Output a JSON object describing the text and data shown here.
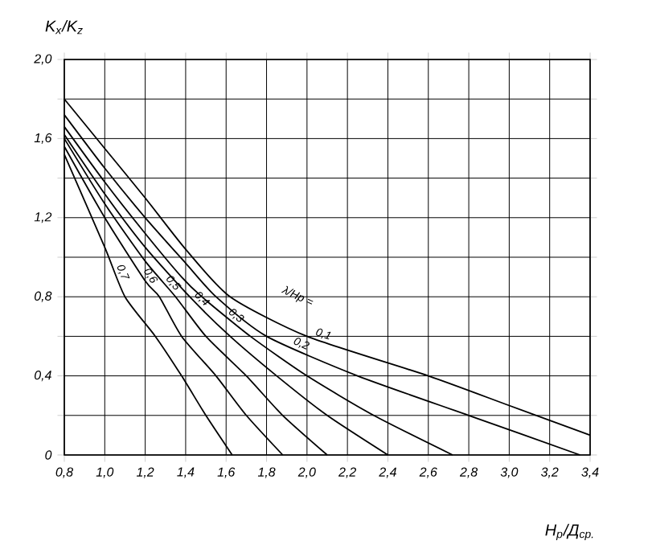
{
  "chart_data": {
    "type": "line",
    "xlabel": "Н$_{р}$/Д$_{ср.}$",
    "ylabel": "K$_{x}$/K$_{z}$",
    "xlim": [
      0.8,
      3.4
    ],
    "ylim": [
      0,
      2.0
    ],
    "xticks": [
      {
        "value": 0.8,
        "label": "0,8"
      },
      {
        "value": 1.0,
        "label": "1,0"
      },
      {
        "value": 1.2,
        "label": "1,2"
      },
      {
        "value": 1.4,
        "label": "1,4"
      },
      {
        "value": 1.6,
        "label": "1,6"
      },
      {
        "value": 1.8,
        "label": "1,8"
      },
      {
        "value": 2.0,
        "label": "2,0"
      },
      {
        "value": 2.2,
        "label": "2,2"
      },
      {
        "value": 2.4,
        "label": "2,4"
      },
      {
        "value": 2.6,
        "label": "2,6"
      },
      {
        "value": 2.8,
        "label": "2,8"
      },
      {
        "value": 3.0,
        "label": "3,0"
      },
      {
        "value": 3.2,
        "label": "3,2"
      },
      {
        "value": 3.4,
        "label": "3,4"
      }
    ],
    "yticks": [
      0,
      {
        "value": 0.2,
        "label": null
      },
      {
        "value": 0.4,
        "label": "0,4"
      },
      {
        "value": 0.6,
        "label": null
      },
      {
        "value": 0.8,
        "label": "0,8"
      },
      {
        "value": 1.0,
        "label": null
      },
      {
        "value": 1.2,
        "label": "1,2"
      },
      {
        "value": 1.4,
        "label": null
      },
      {
        "value": 1.6,
        "label": "1,6"
      },
      {
        "value": 1.8,
        "label": null
      },
      {
        "value": 2.0,
        "label": "2,0"
      }
    ],
    "grid": true,
    "legend": false,
    "marker": "none",
    "line_style": "solid",
    "annotations": [
      "λ/Hp ="
    ],
    "series": [
      {
        "name": "0,1",
        "color": "#000000",
        "x": [
          0.8,
          1.0,
          1.2,
          1.4,
          1.62,
          2.0,
          2.6,
          3.0,
          3.4
        ],
        "values": [
          1.8,
          1.55,
          1.3,
          1.04,
          0.8,
          0.6,
          0.4,
          0.25,
          0.1
        ]
      },
      {
        "name": "0,2",
        "color": "#000000",
        "x": [
          0.8,
          1.0,
          1.2,
          1.4,
          1.55,
          1.8,
          2.25,
          2.8,
          3.35
        ],
        "values": [
          1.72,
          1.45,
          1.2,
          0.97,
          0.8,
          0.6,
          0.4,
          0.2,
          0
        ]
      },
      {
        "name": "0,3",
        "color": "#000000",
        "x": [
          0.8,
          1.0,
          1.2,
          1.38,
          1.48,
          1.72,
          2.0,
          2.33,
          2.72
        ],
        "values": [
          1.66,
          1.38,
          1.12,
          0.9,
          0.8,
          0.6,
          0.4,
          0.2,
          0
        ]
      },
      {
        "name": "0,4",
        "color": "#000000",
        "x": [
          0.8,
          1.0,
          1.2,
          1.42,
          1.62,
          1.85,
          2.1,
          2.4
        ],
        "values": [
          1.62,
          1.32,
          1.05,
          0.8,
          0.6,
          0.4,
          0.2,
          0
        ]
      },
      {
        "name": "0,5",
        "color": "#000000",
        "x": [
          0.8,
          1.0,
          1.2,
          1.35,
          1.5,
          1.7,
          1.88,
          2.1
        ],
        "values": [
          1.6,
          1.27,
          0.98,
          0.8,
          0.6,
          0.4,
          0.2,
          0
        ]
      },
      {
        "name": "0,6",
        "color": "#000000",
        "x": [
          0.8,
          1.0,
          1.2,
          1.27,
          1.38,
          1.55,
          1.7,
          1.88
        ],
        "values": [
          1.56,
          1.2,
          0.88,
          0.8,
          0.6,
          0.4,
          0.2,
          0
        ]
      },
      {
        "name": "0,7",
        "color": "#000000",
        "x": [
          0.8,
          1.0,
          1.1,
          1.25,
          1.38,
          1.5,
          1.63
        ],
        "values": [
          1.52,
          1.05,
          0.8,
          0.6,
          0.4,
          0.2,
          0
        ]
      }
    ]
  }
}
